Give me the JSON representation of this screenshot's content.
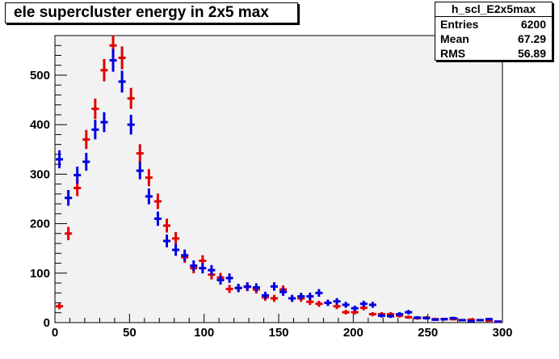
{
  "title": "ele supercluster energy in 2x5 max",
  "stats": {
    "name": "h_scl_E2x5max",
    "rows": [
      {
        "label": "Entries",
        "value": "6200"
      },
      {
        "label": "Mean",
        "value": "67.29"
      },
      {
        "label": "RMS",
        "value": "56.89"
      }
    ]
  },
  "chart_data": {
    "type": "scatter",
    "title": "ele supercluster energy in 2x5 max",
    "xlabel": "",
    "ylabel": "",
    "xlim": [
      0,
      300
    ],
    "ylim": [
      0,
      580
    ],
    "xticks": [
      0,
      50,
      100,
      150,
      200,
      250,
      300
    ],
    "yticks": [
      0,
      100,
      200,
      300,
      400,
      500
    ],
    "grid": false,
    "bin_width": 6,
    "series": [
      {
        "color": "#e00000",
        "values": [
          33,
          180,
          272,
          370,
          432,
          510,
          560,
          535,
          453,
          342,
          293,
          245,
          196,
          170,
          132,
          110,
          125,
          97,
          91,
          68,
          70,
          72,
          67,
          51,
          49,
          67,
          49,
          49,
          42,
          38,
          40,
          33,
          21,
          21,
          30,
          17,
          17,
          17,
          14,
          11,
          9,
          10,
          7,
          7,
          7,
          5,
          6,
          5,
          4,
          2
        ]
      },
      {
        "color": "#0000e0",
        "values": [
          330,
          252,
          298,
          325,
          390,
          405,
          530,
          487,
          400,
          307,
          255,
          210,
          165,
          147,
          136,
          115,
          110,
          106,
          86,
          90,
          70,
          73,
          71,
          55,
          73,
          62,
          49,
          53,
          53,
          60,
          40,
          43,
          36,
          29,
          38,
          36,
          14,
          13,
          17,
          21,
          10,
          9,
          6,
          7,
          9,
          5,
          3,
          5,
          7,
          2
        ]
      }
    ]
  }
}
